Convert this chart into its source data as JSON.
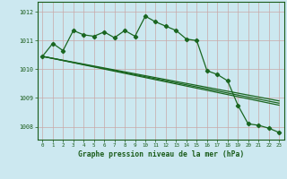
{
  "title": "Graphe pression niveau de la mer (hPa)",
  "bg_color": "#cce8f0",
  "line_color": "#1a6620",
  "text_color": "#1a5c1a",
  "xlim": [
    -0.5,
    23.5
  ],
  "ylim": [
    1007.55,
    1012.35
  ],
  "yticks": [
    1008,
    1009,
    1010,
    1011,
    1012
  ],
  "xticks": [
    0,
    1,
    2,
    3,
    4,
    5,
    6,
    7,
    8,
    9,
    10,
    11,
    12,
    13,
    14,
    15,
    16,
    17,
    18,
    19,
    20,
    21,
    22,
    23
  ],
  "grid_color": "#c8a8a8",
  "main_line": [
    [
      0,
      1010.45
    ],
    [
      1,
      1010.9
    ],
    [
      2,
      1010.65
    ],
    [
      3,
      1011.35
    ],
    [
      4,
      1011.2
    ],
    [
      5,
      1011.15
    ],
    [
      6,
      1011.3
    ],
    [
      7,
      1011.1
    ],
    [
      8,
      1011.35
    ],
    [
      9,
      1011.15
    ],
    [
      10,
      1011.85
    ],
    [
      11,
      1011.65
    ],
    [
      12,
      1011.5
    ],
    [
      13,
      1011.35
    ],
    [
      14,
      1011.05
    ],
    [
      15,
      1011.0
    ],
    [
      16,
      1009.95
    ],
    [
      17,
      1009.82
    ],
    [
      18,
      1009.6
    ],
    [
      19,
      1008.75
    ],
    [
      20,
      1008.1
    ],
    [
      21,
      1008.05
    ],
    [
      22,
      1007.95
    ],
    [
      23,
      1007.8
    ]
  ],
  "ref_lines": [
    [
      [
        0,
        1010.45
      ],
      [
        23,
        1008.75
      ]
    ],
    [
      [
        0,
        1010.45
      ],
      [
        23,
        1008.82
      ]
    ],
    [
      [
        0,
        1010.45
      ],
      [
        23,
        1008.9
      ]
    ]
  ]
}
